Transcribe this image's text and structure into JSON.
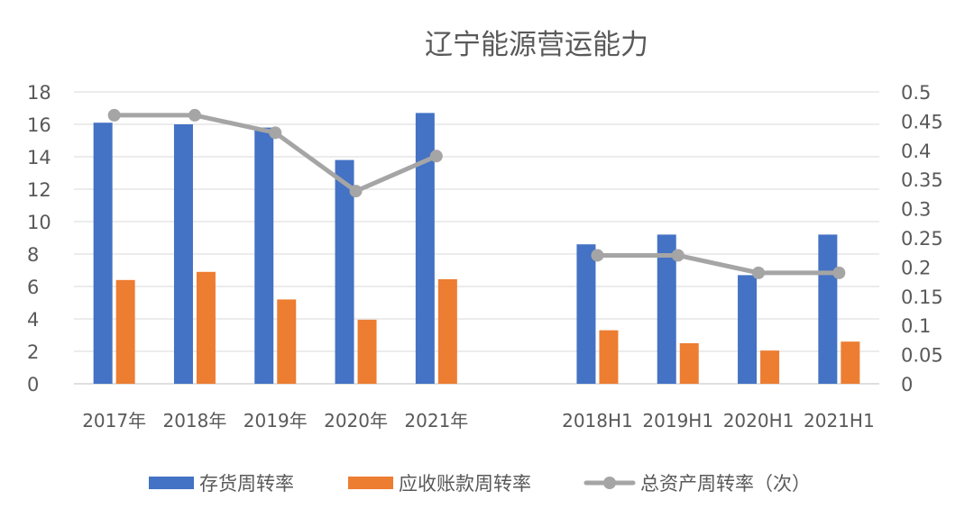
{
  "chart_data": {
    "type": "bar",
    "title": "辽宁能源营运能力",
    "categories": [
      "2017年",
      "2018年",
      "2019年",
      "2020年",
      "2021年",
      "",
      "2018H1",
      "2019H1",
      "2020H1",
      "2021H1"
    ],
    "series": [
      {
        "name": "存货周转率",
        "type": "bar",
        "axis": "left",
        "color": "#4472C4",
        "values": [
          16.1,
          16.0,
          15.8,
          13.8,
          16.7,
          null,
          8.6,
          9.2,
          6.7,
          9.2
        ]
      },
      {
        "name": "应收账款周转率",
        "type": "bar",
        "axis": "left",
        "color": "#ED7D31",
        "values": [
          6.4,
          6.9,
          5.2,
          3.95,
          6.45,
          null,
          3.3,
          2.5,
          2.05,
          2.6
        ]
      },
      {
        "name": "总资产周转率（次）",
        "type": "line",
        "axis": "right",
        "color": "#A5A5A5",
        "values": [
          0.46,
          0.46,
          0.43,
          0.33,
          0.39,
          null,
          0.22,
          0.22,
          0.19,
          0.19
        ]
      }
    ],
    "y_left": {
      "range": [
        0,
        18
      ],
      "ticks": [
        "0",
        "2",
        "4",
        "6",
        "8",
        "10",
        "12",
        "14",
        "16",
        "18"
      ]
    },
    "y_right": {
      "range": [
        0,
        0.5
      ],
      "ticks": [
        "0",
        "0.05",
        "0.1",
        "0.15",
        "0.2",
        "0.25",
        "0.3",
        "0.35",
        "0.4",
        "0.45",
        "0.5"
      ]
    },
    "grid": true,
    "legend_position": "bottom"
  }
}
